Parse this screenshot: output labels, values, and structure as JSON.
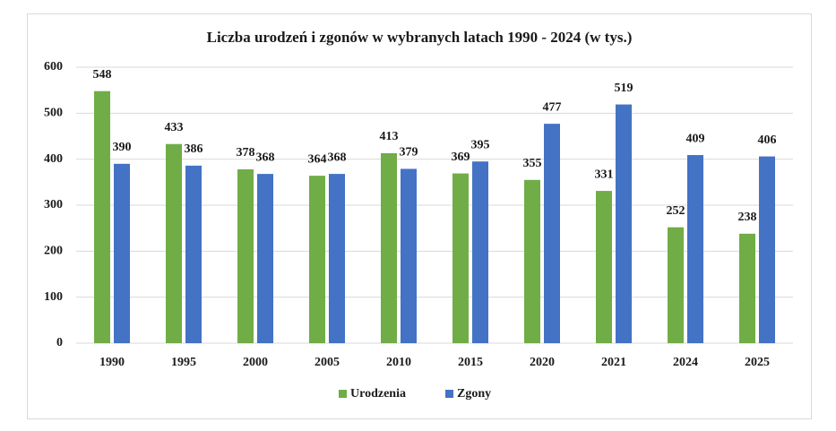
{
  "chart_data": {
    "type": "bar",
    "title": "Liczba  urodzeń  i zgonów  w wybranych  latach 1990 - 2024 (w tys.)",
    "categories": [
      "1990",
      "1995",
      "2000",
      "2005",
      "2010",
      "2015",
      "2020",
      "2021",
      "2024",
      "2025"
    ],
    "series": [
      {
        "name": "Urodzenia",
        "color": "#70ad47",
        "values": [
          548,
          433,
          378,
          364,
          413,
          369,
          355,
          331,
          252,
          238
        ]
      },
      {
        "name": "Zgony",
        "color": "#4472c4",
        "values": [
          390,
          386,
          368,
          368,
          379,
          395,
          477,
          519,
          409,
          406
        ]
      }
    ],
    "ylim": [
      0,
      600
    ],
    "yticks": [
      0,
      100,
      200,
      300,
      400,
      500,
      600
    ],
    "grid": true,
    "legend": "bottom"
  }
}
